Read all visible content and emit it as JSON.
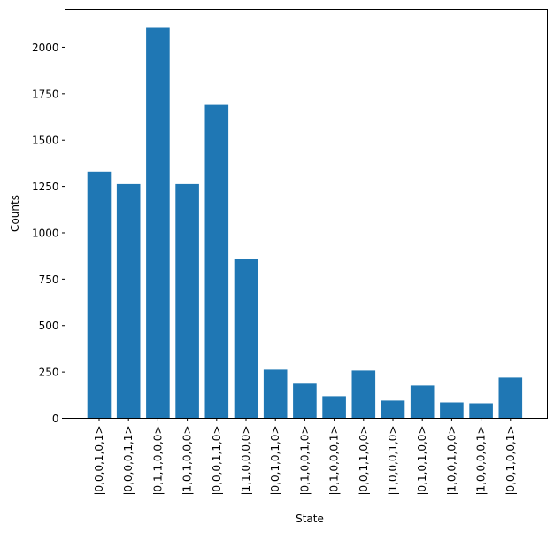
{
  "chart_data": {
    "type": "bar",
    "title": "",
    "xlabel": "State",
    "ylabel": "Counts",
    "ylim": [
      0,
      2205
    ],
    "yticks": [
      0,
      250,
      500,
      750,
      1000,
      1250,
      1500,
      1750,
      2000
    ],
    "grid": false,
    "legend": null,
    "bar_color": "#1f77b4",
    "categories": [
      "|0,0,0,1,0,1>",
      "|0,0,0,0,1,1>",
      "|0,1,1,0,0,0>",
      "|1,0,1,0,0,0>",
      "|0,0,0,1,1,0>",
      "|1,1,0,0,0,0>",
      "|0,0,1,0,1,0>",
      "|0,1,0,0,1,0>",
      "|0,1,0,0,0,1>",
      "|0,0,1,1,0,0>",
      "|1,0,0,0,1,0>",
      "|0,1,0,1,0,0>",
      "|1,0,0,1,0,0>",
      "|1,0,0,0,0,1>",
      "|0,0,1,0,0,1>"
    ],
    "values": [
      1330,
      1263,
      2105,
      1263,
      1689,
      861,
      263,
      187,
      120,
      258,
      96,
      177,
      86,
      81,
      220
    ]
  }
}
